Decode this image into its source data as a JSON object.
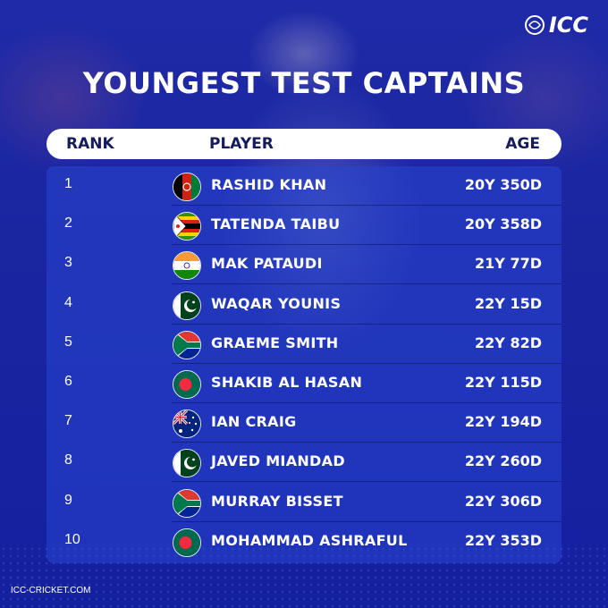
{
  "logo": {
    "text": "ICC"
  },
  "title": "YOUNGEST TEST CAPTAINS",
  "headers": {
    "rank": "RANK",
    "player": "PLAYER",
    "age": "AGE"
  },
  "rows": [
    {
      "rank": "1",
      "player": "RASHID KHAN",
      "age": "20Y 350D",
      "flag": "afghanistan-flag"
    },
    {
      "rank": "2",
      "player": "TATENDA TAIBU",
      "age": "20Y 358D",
      "flag": "zimbabwe-flag"
    },
    {
      "rank": "3",
      "player": "MAK PATAUDI",
      "age": "21Y 77D",
      "flag": "india-flag"
    },
    {
      "rank": "4",
      "player": "WAQAR YOUNIS",
      "age": "22Y 15D",
      "flag": "pakistan-flag"
    },
    {
      "rank": "5",
      "player": "GRAEME SMITH",
      "age": "22Y 82D",
      "flag": "south-africa-flag"
    },
    {
      "rank": "6",
      "player": "SHAKIB AL HASAN",
      "age": "22Y 115D",
      "flag": "bangladesh-flag"
    },
    {
      "rank": "7",
      "player": "IAN CRAIG",
      "age": "22Y 194D",
      "flag": "australia-flag"
    },
    {
      "rank": "8",
      "player": "JAVED MIANDAD",
      "age": "22Y 260D",
      "flag": "pakistan-flag"
    },
    {
      "rank": "9",
      "player": "MURRAY BISSET",
      "age": "22Y 306D",
      "flag": "south-africa-flag"
    },
    {
      "rank": "10",
      "player": "MOHAMMAD ASHRAFUL",
      "age": "22Y 353D",
      "flag": "bangladesh-flag"
    }
  ],
  "footer": "ICC-CRICKET.COM",
  "colors": {
    "background": "#1f2aa8",
    "header_text": "#141b5e",
    "text": "#ffffff"
  }
}
